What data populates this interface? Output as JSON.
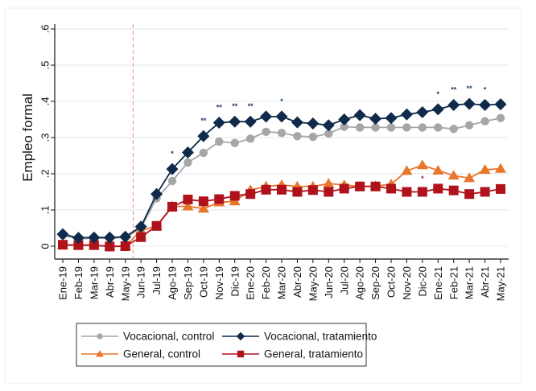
{
  "chart_data": {
    "type": "line",
    "title": "",
    "xlabel": "",
    "ylabel": "Empleo formal",
    "ylim": [
      0,
      0.6
    ],
    "yticks": [
      0,
      0.1,
      0.2,
      0.3,
      0.4,
      0.5,
      0.6
    ],
    "ytick_labels": [
      "0",
      ".1",
      ".2",
      ".3",
      ".4",
      ".5",
      ".6"
    ],
    "grid": true,
    "legend_position": "bottom",
    "treatment_start_marker": {
      "between": [
        "May-19",
        "Jun-19"
      ],
      "style": "dashed vertical line",
      "color": "#f08a9a"
    },
    "categories": [
      "Ene-19",
      "Feb-19",
      "Mar-19",
      "Abr-19",
      "May-19",
      "Jun-19",
      "Jul-19",
      "Ago-19",
      "Sep-19",
      "Oct-19",
      "Nov-19",
      "Dic-19",
      "Ene-20",
      "Feb-20",
      "Mar-20",
      "Abr-20",
      "May-20",
      "Jun-20",
      "Jul-20",
      "Ago-20",
      "Sep-20",
      "Oct-20",
      "Nov-20",
      "Dic-20",
      "Ene-21",
      "Feb-21",
      "Mar-21",
      "Abr-21",
      "May-21"
    ],
    "series": [
      {
        "name": "Vocacional, control",
        "marker": "circle",
        "color": "#a6a6a6",
        "values": [
          0.03,
          0.02,
          0.022,
          0.022,
          0.024,
          0.05,
          0.132,
          0.18,
          0.231,
          0.258,
          0.289,
          0.285,
          0.297,
          0.316,
          0.313,
          0.304,
          0.302,
          0.311,
          0.33,
          0.328,
          0.328,
          0.328,
          0.328,
          0.328,
          0.328,
          0.324,
          0.334,
          0.345,
          0.354
        ]
      },
      {
        "name": "Vocacional, tratamiento",
        "marker": "diamond",
        "color": "#0f2a4a",
        "values": [
          0.033,
          0.023,
          0.024,
          0.024,
          0.026,
          0.054,
          0.144,
          0.213,
          0.259,
          0.304,
          0.341,
          0.344,
          0.344,
          0.358,
          0.358,
          0.342,
          0.339,
          0.334,
          0.35,
          0.362,
          0.352,
          0.354,
          0.364,
          0.37,
          0.378,
          0.39,
          0.393,
          0.39,
          0.392
        ]
      },
      {
        "name": "General, control",
        "marker": "triangle",
        "color": "#e8762c",
        "values": [
          0.003,
          0.002,
          0.002,
          0.0,
          0.0,
          0.043,
          0.056,
          0.11,
          0.11,
          0.104,
          0.121,
          0.124,
          0.155,
          0.165,
          0.169,
          0.165,
          0.165,
          0.173,
          0.169,
          0.165,
          0.166,
          0.171,
          0.208,
          0.224,
          0.209,
          0.195,
          0.188,
          0.211,
          0.214
        ]
      },
      {
        "name": "General, tratamiento",
        "marker": "square",
        "color": "#b0121b",
        "values": [
          0.004,
          0.003,
          0.003,
          -0.001,
          0.0,
          0.025,
          0.056,
          0.109,
          0.129,
          0.124,
          0.13,
          0.139,
          0.144,
          0.156,
          0.156,
          0.15,
          0.155,
          0.15,
          0.159,
          0.165,
          0.165,
          0.159,
          0.15,
          0.15,
          0.159,
          0.154,
          0.144,
          0.15,
          0.158
        ]
      }
    ],
    "annotations": [
      {
        "series": "Vocacional, tratamiento",
        "category": "Ago-19",
        "text": "*"
      },
      {
        "series": "Vocacional, tratamiento",
        "category": "Oct-19",
        "text": "**"
      },
      {
        "series": "Vocacional, tratamiento",
        "category": "Nov-19",
        "text": "**"
      },
      {
        "series": "Vocacional, tratamiento",
        "category": "Dic-19",
        "text": "**"
      },
      {
        "series": "Vocacional, tratamiento",
        "category": "Ene-20",
        "text": "**"
      },
      {
        "series": "Vocacional, tratamiento",
        "category": "Mar-20",
        "text": "*"
      },
      {
        "series": "Vocacional, tratamiento",
        "category": "Ene-21",
        "text": "*"
      },
      {
        "series": "Vocacional, tratamiento",
        "category": "Feb-21",
        "text": "**"
      },
      {
        "series": "Vocacional, tratamiento",
        "category": "Mar-21",
        "text": "**"
      },
      {
        "series": "Vocacional, tratamiento",
        "category": "Abr-21",
        "text": "*"
      },
      {
        "series": "General, control",
        "category": "Dic-20",
        "text": "*"
      }
    ],
    "legend": {
      "entries": [
        {
          "label": "Vocacional, control",
          "series": 0
        },
        {
          "label": "Vocacional, tratamiento",
          "series": 1
        },
        {
          "label": "General, control",
          "series": 2
        },
        {
          "label": "General, tratamiento",
          "series": 3
        }
      ]
    }
  }
}
